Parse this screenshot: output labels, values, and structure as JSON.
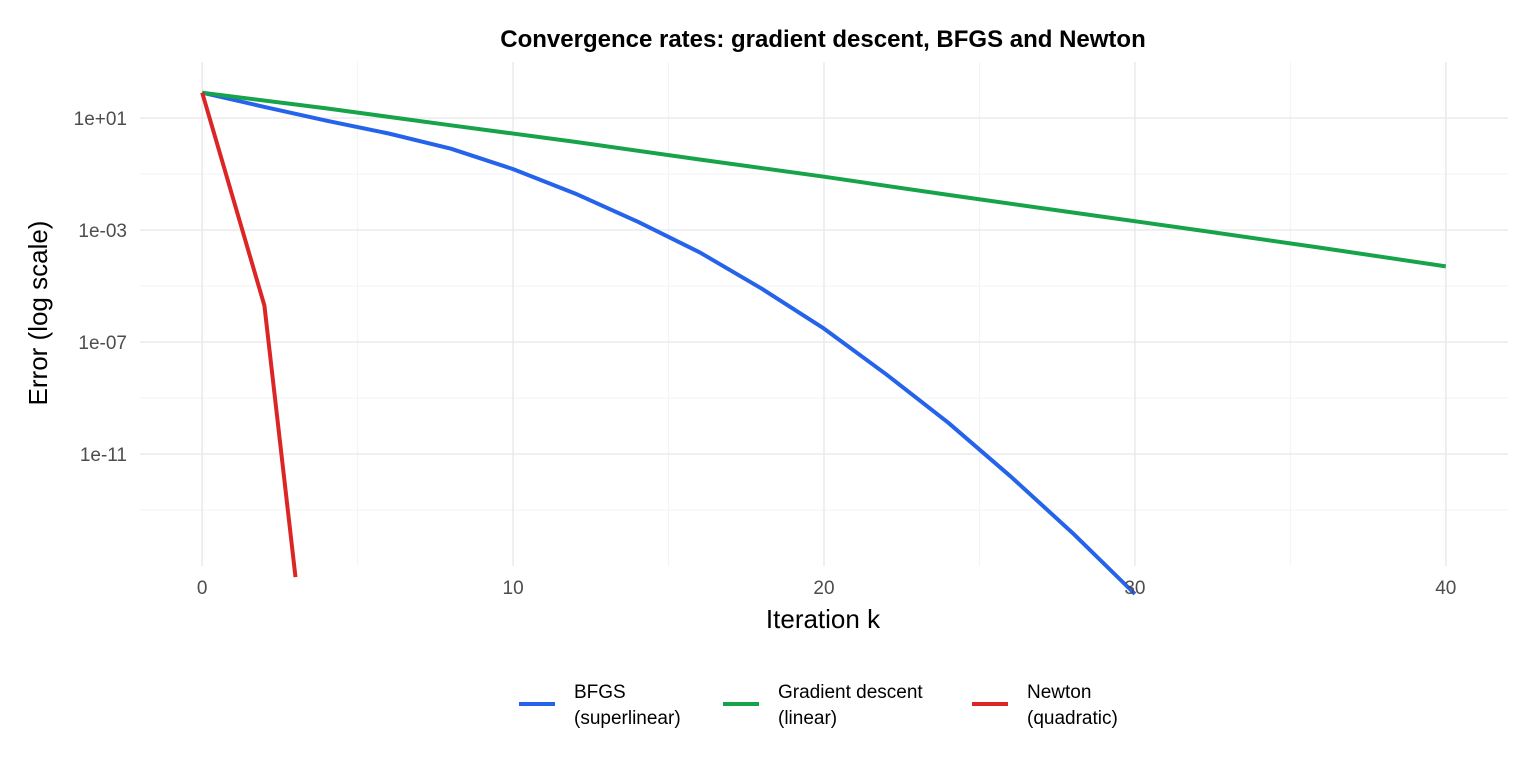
{
  "chart_data": {
    "type": "line",
    "title": "Convergence rates: gradient descent, BFGS and Newton",
    "xlabel": "Iteration k",
    "ylabel": "Error (log scale)",
    "y_scale": "log10",
    "xlim": [
      -2,
      42
    ],
    "ylim": [
      1e-15,
      1000.0
    ],
    "x_ticks": [
      0,
      10,
      20,
      30,
      40
    ],
    "x_tick_labels": [
      "0",
      "10",
      "20",
      "30",
      "40"
    ],
    "y_ticks": [
      1e-11,
      1e-07,
      0.001,
      10.0
    ],
    "y_tick_labels": [
      "1e-11",
      "1e-07",
      "1e-03",
      "1e+01"
    ],
    "grid": true,
    "legend_position": "bottom",
    "series": [
      {
        "name": "BFGS\n(superlinear)",
        "legend_lines": [
          "BFGS",
          "(superlinear)"
        ],
        "color": "#2563EB",
        "x": [
          0,
          2,
          4,
          6,
          8,
          10,
          12,
          14,
          16,
          18,
          20,
          22,
          24,
          26,
          28,
          30
        ],
        "y": [
          80,
          25,
          8,
          2.8,
          0.8,
          0.15,
          0.02,
          0.002,
          0.00016,
          8e-06,
          3e-07,
          7e-09,
          1.3e-10,
          1.6e-12,
          1.5e-14,
          1e-16
        ]
      },
      {
        "name": "Gradient descent\n(linear)",
        "legend_lines": [
          "Gradient descent",
          "(linear)"
        ],
        "color": "#16A34A",
        "x": [
          0,
          4,
          8,
          12,
          16,
          20,
          24,
          28,
          32,
          36,
          40
        ],
        "y": [
          80,
          22,
          5.5,
          1.4,
          0.33,
          0.08,
          0.018,
          0.0042,
          0.001,
          0.00023,
          5e-05
        ]
      },
      {
        "name": "Newton\n(quadratic)",
        "legend_lines": [
          "Newton",
          "(quadratic)"
        ],
        "color": "#DC2626",
        "x": [
          0,
          2,
          3
        ],
        "y": [
          80,
          2e-06,
          4e-16
        ]
      }
    ]
  }
}
